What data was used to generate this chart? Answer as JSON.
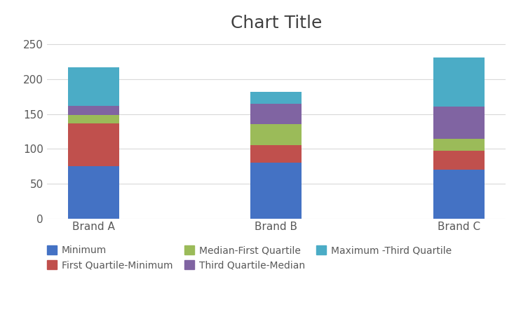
{
  "title": "Chart Title",
  "categories": [
    "Brand A",
    "Brand B",
    "Brand C"
  ],
  "series": {
    "Minimum": [
      75,
      80,
      70
    ],
    "First Quartile-Minimum": [
      62,
      25,
      27
    ],
    "Median-First Quartile": [
      12,
      30,
      17
    ],
    "Third Quartile-Median": [
      13,
      30,
      47
    ],
    "Maximum -Third Quartile": [
      55,
      17,
      70
    ]
  },
  "colors": {
    "Minimum": "#4472C4",
    "First Quartile-Minimum": "#C0504D",
    "Median-First Quartile": "#9BBB59",
    "Third Quartile-Median": "#8064A2",
    "Maximum -Third Quartile": "#4BACC6"
  },
  "ylim": [
    0,
    260
  ],
  "yticks": [
    0,
    50,
    100,
    150,
    200,
    250
  ],
  "bar_width": 0.28,
  "title_fontsize": 18,
  "tick_fontsize": 11,
  "legend_fontsize": 10,
  "background_color": "#FFFFFF",
  "grid_color": "#D9D9D9",
  "legend_row1": [
    "Minimum",
    "First Quartile-Minimum",
    "Median-First Quartile"
  ],
  "legend_row2": [
    "Third Quartile-Median",
    "Maximum -Third Quartile"
  ]
}
